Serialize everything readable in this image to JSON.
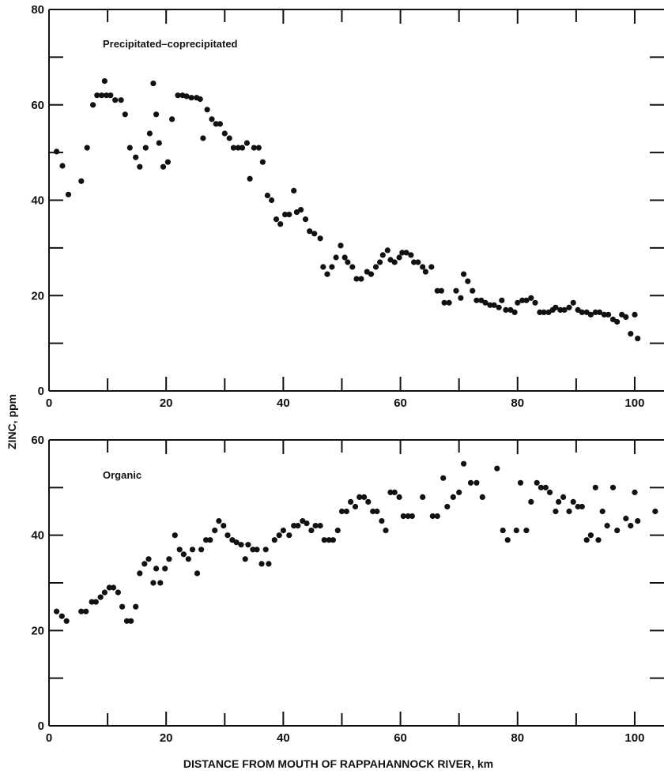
{
  "chart_data": [
    {
      "type": "scatter",
      "annotation": "Precipitated–coprecipitated",
      "xlim": [
        0,
        105
      ],
      "ylim": [
        0,
        80
      ],
      "x_ticks": [
        0,
        20,
        40,
        60,
        80,
        100
      ],
      "y_ticks": [
        0,
        20,
        40,
        60,
        80
      ],
      "ylabel": "ZINC, ppm",
      "xlabel": "",
      "points": [
        [
          1.3,
          50.2
        ],
        [
          2.3,
          47.2
        ],
        [
          3.3,
          41.2
        ],
        [
          5.5,
          44
        ],
        [
          6.5,
          51
        ],
        [
          7.5,
          60
        ],
        [
          8.2,
          62
        ],
        [
          9,
          62
        ],
        [
          9.5,
          65
        ],
        [
          9.8,
          62
        ],
        [
          10.5,
          62
        ],
        [
          11.3,
          61
        ],
        [
          12.3,
          61
        ],
        [
          13,
          58
        ],
        [
          13.8,
          51
        ],
        [
          14.8,
          49
        ],
        [
          15.5,
          47
        ],
        [
          16.5,
          51
        ],
        [
          17.2,
          54
        ],
        [
          17.8,
          64.5
        ],
        [
          18.3,
          58
        ],
        [
          18.8,
          52
        ],
        [
          19.5,
          47
        ],
        [
          20.3,
          48
        ],
        [
          21,
          57
        ],
        [
          22,
          62
        ],
        [
          22.8,
          62
        ],
        [
          23.5,
          61.8
        ],
        [
          24.3,
          61.5
        ],
        [
          25.2,
          61.5
        ],
        [
          25.8,
          61.2
        ],
        [
          26.3,
          53
        ],
        [
          27,
          59
        ],
        [
          27.8,
          57
        ],
        [
          28.5,
          56
        ],
        [
          29.2,
          56
        ],
        [
          30,
          54
        ],
        [
          30.8,
          53
        ],
        [
          31.5,
          51
        ],
        [
          32.3,
          51
        ],
        [
          33,
          51
        ],
        [
          33.8,
          52
        ],
        [
          34.3,
          44.5
        ],
        [
          35,
          51
        ],
        [
          35.8,
          51
        ],
        [
          36.5,
          48
        ],
        [
          37.3,
          41
        ],
        [
          38,
          40
        ],
        [
          38.8,
          36
        ],
        [
          39.5,
          35
        ],
        [
          40.3,
          37
        ],
        [
          41,
          37
        ],
        [
          41.8,
          42
        ],
        [
          42.3,
          37.5
        ],
        [
          43,
          38
        ],
        [
          43.8,
          36
        ],
        [
          44.5,
          33.5
        ],
        [
          45.3,
          33
        ],
        [
          46.3,
          32
        ],
        [
          46.8,
          26
        ],
        [
          47.5,
          24.5
        ],
        [
          48.3,
          26
        ],
        [
          49,
          28
        ],
        [
          49.8,
          30.5
        ],
        [
          50.5,
          28
        ],
        [
          51,
          27
        ],
        [
          51.8,
          26
        ],
        [
          52.5,
          23.5
        ],
        [
          53.3,
          23.5
        ],
        [
          54.3,
          25
        ],
        [
          55,
          24.5
        ],
        [
          55.8,
          26
        ],
        [
          56.5,
          27
        ],
        [
          57,
          28.5
        ],
        [
          57.8,
          29.5
        ],
        [
          58.3,
          27.5
        ],
        [
          59,
          27
        ],
        [
          59.8,
          28
        ],
        [
          60.3,
          29
        ],
        [
          61,
          29
        ],
        [
          61.8,
          28.5
        ],
        [
          62.3,
          27
        ],
        [
          63,
          27
        ],
        [
          63.8,
          26
        ],
        [
          64.3,
          25
        ],
        [
          65.3,
          26
        ],
        [
          66.3,
          21
        ],
        [
          67,
          21
        ],
        [
          67.5,
          18.5
        ],
        [
          68.3,
          18.5
        ],
        [
          69.5,
          21
        ],
        [
          70.3,
          19.5
        ],
        [
          70.8,
          24.5
        ],
        [
          71.5,
          23
        ],
        [
          72.3,
          21
        ],
        [
          73,
          19
        ],
        [
          73.8,
          19
        ],
        [
          74.5,
          18.5
        ],
        [
          75.3,
          18
        ],
        [
          76,
          18
        ],
        [
          76.8,
          17.5
        ],
        [
          77.3,
          19
        ],
        [
          78,
          17
        ],
        [
          78.8,
          17
        ],
        [
          79.5,
          16.5
        ],
        [
          80,
          18.5
        ],
        [
          80.8,
          19
        ],
        [
          81.5,
          19
        ],
        [
          82.3,
          19.5
        ],
        [
          83,
          18.5
        ],
        [
          83.8,
          16.5
        ],
        [
          84.5,
          16.5
        ],
        [
          85.3,
          16.5
        ],
        [
          86,
          17
        ],
        [
          86.5,
          17.5
        ],
        [
          87.3,
          17
        ],
        [
          88,
          17
        ],
        [
          88.8,
          17.5
        ],
        [
          89.5,
          18.5
        ],
        [
          90.3,
          17
        ],
        [
          91,
          16.5
        ],
        [
          91.8,
          16.5
        ],
        [
          92.5,
          16
        ],
        [
          93.3,
          16.5
        ],
        [
          94,
          16.5
        ],
        [
          94.8,
          16
        ],
        [
          95.5,
          16
        ],
        [
          96.3,
          15
        ],
        [
          97,
          14.5
        ],
        [
          97.8,
          16
        ],
        [
          98.5,
          15.5
        ],
        [
          99.3,
          12
        ],
        [
          100,
          16
        ],
        [
          100.5,
          11
        ]
      ]
    },
    {
      "type": "scatter",
      "annotation": "Organic",
      "xlim": [
        0,
        105
      ],
      "ylim": [
        0,
        60
      ],
      "x_ticks": [
        0,
        20,
        40,
        60,
        80,
        100
      ],
      "y_ticks": [
        0,
        20,
        40,
        60
      ],
      "ylabel": "",
      "xlabel": "DISTANCE FROM MOUTH OF RAPPAHANNOCK RIVER, km",
      "points": [
        [
          1.3,
          24
        ],
        [
          2.2,
          23
        ],
        [
          3,
          22
        ],
        [
          5.5,
          24
        ],
        [
          6.3,
          24
        ],
        [
          7.3,
          26
        ],
        [
          8,
          26
        ],
        [
          8.8,
          27
        ],
        [
          9.5,
          28
        ],
        [
          10.3,
          29
        ],
        [
          11,
          29
        ],
        [
          11.8,
          28
        ],
        [
          12.5,
          25
        ],
        [
          13.3,
          22
        ],
        [
          14,
          22
        ],
        [
          14.8,
          25
        ],
        [
          15.5,
          32
        ],
        [
          16.3,
          34
        ],
        [
          17,
          35
        ],
        [
          17.8,
          30
        ],
        [
          18.3,
          33
        ],
        [
          19,
          30
        ],
        [
          19.8,
          33
        ],
        [
          20.5,
          35
        ],
        [
          21.5,
          40
        ],
        [
          22.3,
          37
        ],
        [
          23,
          36
        ],
        [
          23.8,
          35
        ],
        [
          24.5,
          37
        ],
        [
          25.3,
          32
        ],
        [
          26,
          37
        ],
        [
          26.8,
          39
        ],
        [
          27.5,
          39
        ],
        [
          28.3,
          41
        ],
        [
          29,
          43
        ],
        [
          29.8,
          42
        ],
        [
          30.5,
          40
        ],
        [
          31.3,
          39
        ],
        [
          32,
          38.5
        ],
        [
          32.8,
          38
        ],
        [
          33.5,
          35
        ],
        [
          34,
          38
        ],
        [
          34.8,
          37
        ],
        [
          35.5,
          37
        ],
        [
          36.3,
          34
        ],
        [
          37,
          37
        ],
        [
          37.5,
          34
        ],
        [
          38.5,
          39
        ],
        [
          39.3,
          40
        ],
        [
          40,
          41
        ],
        [
          41,
          40
        ],
        [
          41.8,
          42
        ],
        [
          42.5,
          42
        ],
        [
          43.3,
          43
        ],
        [
          44,
          42.5
        ],
        [
          44.8,
          41
        ],
        [
          45.5,
          42
        ],
        [
          46.3,
          42
        ],
        [
          47,
          39
        ],
        [
          47.8,
          39
        ],
        [
          48.5,
          39
        ],
        [
          49.3,
          41
        ],
        [
          50,
          45
        ],
        [
          50.8,
          45
        ],
        [
          51.5,
          47
        ],
        [
          52.3,
          46
        ],
        [
          53,
          48
        ],
        [
          53.8,
          48
        ],
        [
          54.5,
          47
        ],
        [
          55.3,
          45
        ],
        [
          56,
          45
        ],
        [
          56.8,
          43
        ],
        [
          57.5,
          41
        ],
        [
          58.3,
          49
        ],
        [
          59,
          49
        ],
        [
          59.8,
          48
        ],
        [
          60.5,
          44
        ],
        [
          61.3,
          44
        ],
        [
          62,
          44
        ],
        [
          63.8,
          48
        ],
        [
          65.5,
          44
        ],
        [
          66.3,
          44
        ],
        [
          67.3,
          52
        ],
        [
          68,
          46
        ],
        [
          69,
          48
        ],
        [
          70,
          49
        ],
        [
          70.8,
          55
        ],
        [
          72,
          51
        ],
        [
          73,
          51
        ],
        [
          74,
          48
        ],
        [
          76.5,
          54
        ],
        [
          77.5,
          41
        ],
        [
          78.3,
          39
        ],
        [
          79.8,
          41
        ],
        [
          80.5,
          51
        ],
        [
          81.5,
          41
        ],
        [
          82.3,
          47
        ],
        [
          83.3,
          51
        ],
        [
          84,
          50
        ],
        [
          84.8,
          50
        ],
        [
          85.5,
          49
        ],
        [
          86.5,
          45
        ],
        [
          87,
          47
        ],
        [
          87.8,
          48
        ],
        [
          88.8,
          45
        ],
        [
          89.5,
          47
        ],
        [
          90.3,
          46
        ],
        [
          91,
          46
        ],
        [
          91.8,
          39
        ],
        [
          92.5,
          40
        ],
        [
          93.3,
          50
        ],
        [
          93.8,
          39
        ],
        [
          94.5,
          45
        ],
        [
          95.3,
          42
        ],
        [
          96.3,
          50
        ],
        [
          97,
          41
        ],
        [
          98.5,
          43.5
        ],
        [
          99.3,
          42
        ],
        [
          100,
          49
        ],
        [
          100.5,
          43
        ],
        [
          103.5,
          45
        ]
      ]
    }
  ]
}
